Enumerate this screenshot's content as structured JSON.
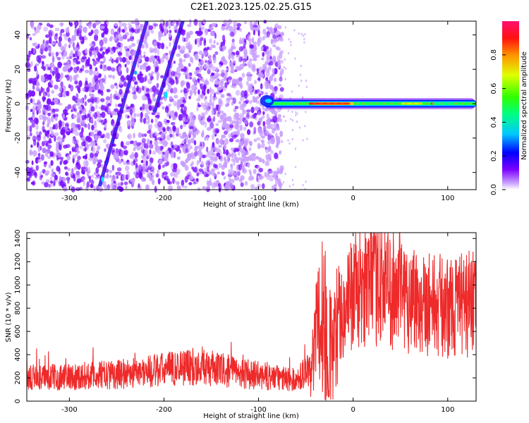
{
  "title": "C2E1.2023.125.02.25.G15",
  "colors": {
    "snr_line": "#ee2a2a",
    "scatter_purple": "#7a10ff",
    "scatter_light": "#c79bff"
  },
  "chart_data": [
    {
      "type": "heatmap",
      "xlabel": "Height of straight line (km)",
      "ylabel": "Frequency (Hz)",
      "xlim": [
        -345,
        130
      ],
      "ylim": [
        -50,
        48
      ],
      "x_ticks": [
        -300,
        -200,
        -100,
        0,
        100
      ],
      "y_ticks": [
        -40,
        -20,
        0,
        20,
        40
      ],
      "colorbar": {
        "label": "Normalized spectral amplitude",
        "range": [
          0,
          1
        ],
        "ticks": [
          0.0,
          0.2,
          0.4,
          0.6,
          0.8
        ],
        "tick_labels": [
          "0.0",
          "0.2",
          "0.4",
          "0.6",
          "0.8"
        ],
        "colormap": "rainbow"
      },
      "features": [
        {
          "name": "noise",
          "x_range": [
            -345,
            -75
          ],
          "y_range": [
            -50,
            48
          ],
          "amplitude": 0.05
        },
        {
          "name": "diagonal",
          "x": [
            -268,
            -218
          ],
          "y": [
            -48,
            48
          ],
          "amplitude": 0.15
        },
        {
          "name": "diagonal",
          "x": [
            -210,
            -180
          ],
          "y": [
            -5,
            48
          ],
          "amplitude": 0.15
        },
        {
          "name": "carrier",
          "x_range": [
            -100,
            130
          ],
          "y": 0,
          "amplitude": 1.0
        }
      ]
    },
    {
      "type": "line",
      "xlabel": "Height of straight line (km)",
      "ylabel": "SNR (10 * v/v)",
      "xlim": [
        -345,
        130
      ],
      "ylim": [
        0,
        1450
      ],
      "x_ticks": [
        -300,
        -200,
        -100,
        0,
        100
      ],
      "y_ticks": [
        0,
        200,
        400,
        600,
        800,
        1000,
        1200,
        1400
      ],
      "series": [
        {
          "x": [
            -345,
            -300,
            -250,
            -200,
            -175,
            -150,
            -100,
            -60,
            -45,
            -35,
            -27,
            -22,
            -15,
            0,
            15,
            30,
            40,
            60,
            80,
            100,
            130
          ],
          "values": [
            200,
            210,
            230,
            270,
            300,
            280,
            220,
            180,
            300,
            700,
            800,
            400,
            750,
            900,
            1000,
            1050,
            980,
            900,
            850,
            800,
            850
          ]
        }
      ]
    }
  ]
}
